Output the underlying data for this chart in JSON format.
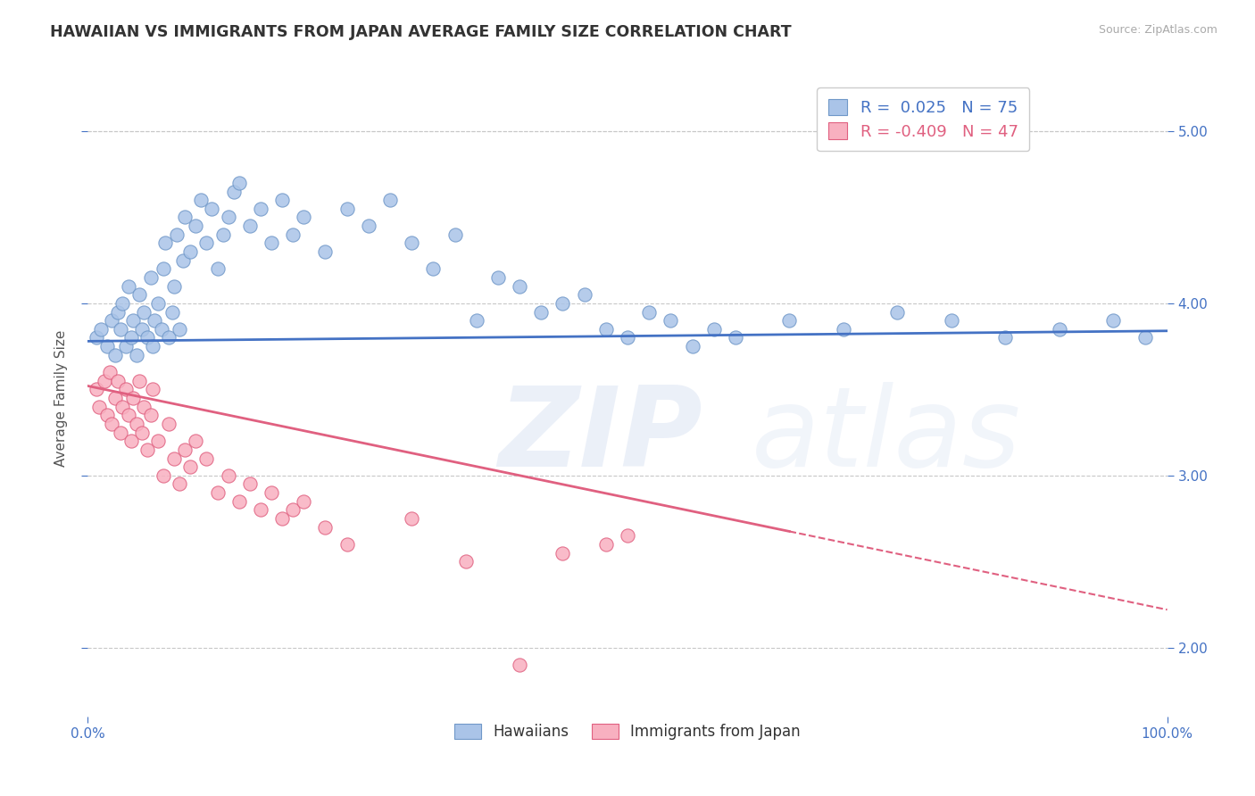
{
  "title": "HAWAIIAN VS IMMIGRANTS FROM JAPAN AVERAGE FAMILY SIZE CORRELATION CHART",
  "source_text": "Source: ZipAtlas.com",
  "ylabel": "Average Family Size",
  "xlim": [
    0.0,
    1.0
  ],
  "ylim": [
    1.6,
    5.3
  ],
  "yticks": [
    2.0,
    3.0,
    4.0,
    5.0
  ],
  "xtick_positions": [
    0.0,
    1.0
  ],
  "xticklabels": [
    "0.0%",
    "100.0%"
  ],
  "background_color": "#ffffff",
  "grid_color": "#c8c8c8",
  "title_color": "#333333",
  "title_fontsize": 12.5,
  "axis_label_color": "#555555",
  "tick_color": "#4472c4",
  "watermark_zip": "ZIP",
  "watermark_atlas": "atlas",
  "watermark_color": "#4472c4",
  "series1_color": "#aac4e8",
  "series1_edge": "#7098c8",
  "series1_R": 0.025,
  "series1_N": 75,
  "series1_line_color": "#4472c4",
  "series1_name": "Hawaiians",
  "series2_color": "#f8b0c0",
  "series2_edge": "#e06080",
  "series2_R": -0.409,
  "series2_N": 47,
  "series2_line_color": "#e06080",
  "series2_name": "Immigrants from Japan",
  "legend_R1_color": "#4472c4",
  "legend_R2_color": "#e06080",
  "hawaiian_x": [
    0.008,
    0.012,
    0.018,
    0.022,
    0.025,
    0.028,
    0.03,
    0.032,
    0.035,
    0.038,
    0.04,
    0.042,
    0.045,
    0.048,
    0.05,
    0.052,
    0.055,
    0.058,
    0.06,
    0.062,
    0.065,
    0.068,
    0.07,
    0.072,
    0.075,
    0.078,
    0.08,
    0.082,
    0.085,
    0.088,
    0.09,
    0.095,
    0.1,
    0.105,
    0.11,
    0.115,
    0.12,
    0.125,
    0.13,
    0.135,
    0.14,
    0.15,
    0.16,
    0.17,
    0.18,
    0.19,
    0.2,
    0.22,
    0.24,
    0.26,
    0.28,
    0.3,
    0.32,
    0.34,
    0.36,
    0.38,
    0.4,
    0.42,
    0.44,
    0.46,
    0.48,
    0.5,
    0.52,
    0.54,
    0.56,
    0.58,
    0.6,
    0.65,
    0.7,
    0.75,
    0.8,
    0.85,
    0.9,
    0.95,
    0.98
  ],
  "hawaiian_y": [
    3.8,
    3.85,
    3.75,
    3.9,
    3.7,
    3.95,
    3.85,
    4.0,
    3.75,
    4.1,
    3.8,
    3.9,
    3.7,
    4.05,
    3.85,
    3.95,
    3.8,
    4.15,
    3.75,
    3.9,
    4.0,
    3.85,
    4.2,
    4.35,
    3.8,
    3.95,
    4.1,
    4.4,
    3.85,
    4.25,
    4.5,
    4.3,
    4.45,
    4.6,
    4.35,
    4.55,
    4.2,
    4.4,
    4.5,
    4.65,
    4.7,
    4.45,
    4.55,
    4.35,
    4.6,
    4.4,
    4.5,
    4.3,
    4.55,
    4.45,
    4.6,
    4.35,
    4.2,
    4.4,
    3.9,
    4.15,
    4.1,
    3.95,
    4.0,
    4.05,
    3.85,
    3.8,
    3.95,
    3.9,
    3.75,
    3.85,
    3.8,
    3.9,
    3.85,
    3.95,
    3.9,
    3.8,
    3.85,
    3.9,
    3.8
  ],
  "japan_x": [
    0.008,
    0.01,
    0.015,
    0.018,
    0.02,
    0.022,
    0.025,
    0.028,
    0.03,
    0.032,
    0.035,
    0.038,
    0.04,
    0.042,
    0.045,
    0.048,
    0.05,
    0.052,
    0.055,
    0.058,
    0.06,
    0.065,
    0.07,
    0.075,
    0.08,
    0.085,
    0.09,
    0.095,
    0.1,
    0.11,
    0.12,
    0.13,
    0.14,
    0.15,
    0.16,
    0.17,
    0.18,
    0.19,
    0.2,
    0.22,
    0.24,
    0.3,
    0.35,
    0.4,
    0.44,
    0.48,
    0.5
  ],
  "japan_y": [
    3.5,
    3.4,
    3.55,
    3.35,
    3.6,
    3.3,
    3.45,
    3.55,
    3.25,
    3.4,
    3.5,
    3.35,
    3.2,
    3.45,
    3.3,
    3.55,
    3.25,
    3.4,
    3.15,
    3.35,
    3.5,
    3.2,
    3.0,
    3.3,
    3.1,
    2.95,
    3.15,
    3.05,
    3.2,
    3.1,
    2.9,
    3.0,
    2.85,
    2.95,
    2.8,
    2.9,
    2.75,
    2.8,
    2.85,
    2.7,
    2.6,
    2.75,
    2.5,
    1.9,
    2.55,
    2.6,
    2.65
  ],
  "japan_line_solid_end": 0.65,
  "japan_line_dash_end": 1.0
}
